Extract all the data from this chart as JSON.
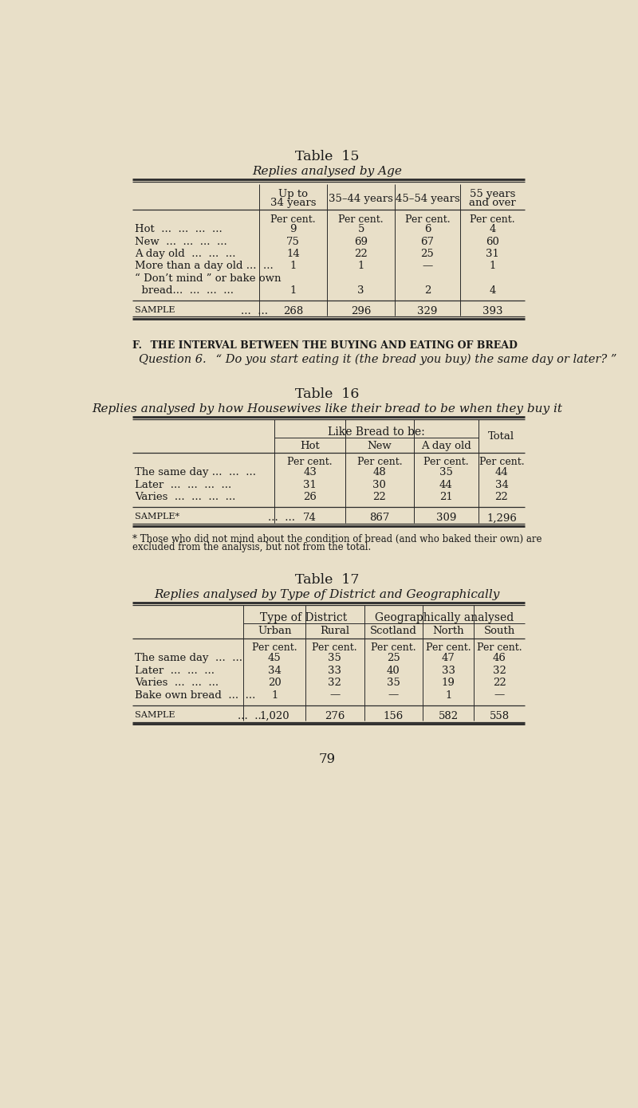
{
  "bg_color": "#e8dfc8",
  "text_color": "#1a1a1a",
  "page_number": "79",
  "section_header": "F. THE INTERVAL BETWEEN THE BUYING AND EATING OF BREAD",
  "question": "Question 6.  “ Do you start eating it (the bread you buy) the same day or later? ”",
  "table15_title": "TABLE 15",
  "table15_subtitle": "Replies analysed by Age",
  "table15_col_headers": [
    "Up to\n34 years",
    "35–44 years",
    "45–54 years",
    "55 years\nand over"
  ],
  "table15_row_labels": [
    "Hot  ...  ...  ...  ...",
    "New  ...  ...  ...  ...",
    "A day old  ...  ...  ...",
    "More than a day old ...  ...",
    "“ Don’t mind ” or bake own",
    "  bread...  ...  ...  ..."
  ],
  "table15_data": [
    [
      "9",
      "5",
      "6",
      "4"
    ],
    [
      "75",
      "69",
      "67",
      "60"
    ],
    [
      "14",
      "22",
      "25",
      "31"
    ],
    [
      "1",
      "1",
      "—",
      "1"
    ],
    [
      "",
      "",
      "",
      ""
    ],
    [
      "1",
      "3",
      "2",
      "4"
    ]
  ],
  "table15_sample": [
    "268",
    "296",
    "329",
    "393"
  ],
  "table16_title": "TABLE 16",
  "table16_subtitle": "Replies analysed by how Housewives like their bread to be when they buy it",
  "table16_group_header": "Like Bread to be:",
  "table16_col_headers": [
    "Hot",
    "New",
    "A day old",
    "Total"
  ],
  "table16_row_labels": [
    "The same day ...  ...  ...",
    "Later  ...  ...  ...  ...",
    "Varies  ...  ...  ...  ..."
  ],
  "table16_data": [
    [
      "43",
      "48",
      "35",
      "44"
    ],
    [
      "31",
      "30",
      "44",
      "34"
    ],
    [
      "26",
      "22",
      "21",
      "22"
    ]
  ],
  "table16_sample": [
    "74",
    "867",
    "309",
    "1,296"
  ],
  "table16_footnote_line1": "* Those who did not mind about the condition of bread (and who baked their own) are",
  "table16_footnote_line2": "excluded from the analysis, but not from the total.",
  "table17_title": "TABLE 17",
  "table17_subtitle": "Replies analysed by Type of District and Geographically",
  "table17_group1_header": "Type of District",
  "table17_group2_header": "Geographically analysed",
  "table17_col_headers": [
    "Urban",
    "Rural",
    "Scotland",
    "North",
    "South"
  ],
  "table17_row_labels": [
    "The same day  ...  ...",
    "Later  ...  ...  ...",
    "Varies  ...  ...  ...",
    "Bake own bread  ...  ..."
  ],
  "table17_data": [
    [
      "45",
      "35",
      "25",
      "47",
      "46"
    ],
    [
      "34",
      "33",
      "40",
      "33",
      "32"
    ],
    [
      "20",
      "32",
      "35",
      "19",
      "22"
    ],
    [
      "1",
      "—",
      "—",
      "1",
      "—"
    ]
  ],
  "table17_sample": [
    "1,020",
    "276",
    "156",
    "582",
    "558"
  ]
}
